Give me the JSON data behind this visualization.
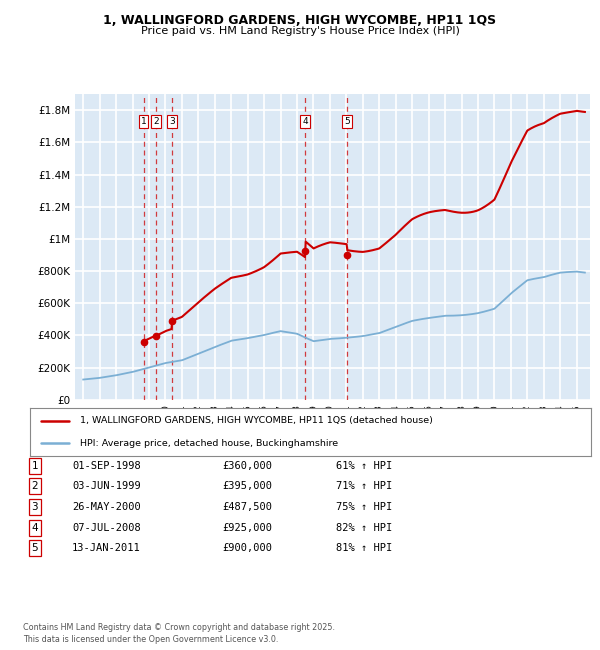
{
  "title_line1": "1, WALLINGFORD GARDENS, HIGH WYCOMBE, HP11 1QS",
  "title_line2": "Price paid vs. HM Land Registry's House Price Index (HPI)",
  "bg_color": "#dce9f5",
  "grid_color": "#ffffff",
  "red_color": "#cc0000",
  "blue_color": "#7bafd4",
  "purchase_dates_float": [
    1998.667,
    1999.417,
    2000.4,
    2008.5,
    2011.04
  ],
  "purchase_prices": [
    360000,
    395000,
    487500,
    925000,
    900000
  ],
  "hpi_years": [
    1995,
    1996,
    1997,
    1998,
    1999,
    2000,
    2001,
    2002,
    2003,
    2004,
    2005,
    2006,
    2007,
    2008,
    2009,
    2010,
    2011,
    2012,
    2013,
    2014,
    2015,
    2016,
    2017,
    2018,
    2019,
    2020,
    2021,
    2022,
    2023,
    2024,
    2025
  ],
  "hpi_vals": [
    128000,
    138000,
    153000,
    172000,
    198000,
    225000,
    242000,
    282000,
    322000,
    358000,
    372000,
    392000,
    422000,
    415000,
    376000,
    395000,
    400000,
    403000,
    413000,
    445000,
    484000,
    510000,
    535000,
    545000,
    556000,
    572000,
    648000,
    710000,
    718000,
    745000,
    760000
  ],
  "table_rows": [
    {
      "num": "1",
      "date": "01-SEP-1998",
      "price": "£360,000",
      "hpi": "61% ↑ HPI"
    },
    {
      "num": "2",
      "date": "03-JUN-1999",
      "price": "£395,000",
      "hpi": "71% ↑ HPI"
    },
    {
      "num": "3",
      "date": "26-MAY-2000",
      "price": "£487,500",
      "hpi": "75% ↑ HPI"
    },
    {
      "num": "4",
      "date": "07-JUL-2008",
      "price": "£925,000",
      "hpi": "82% ↑ HPI"
    },
    {
      "num": "5",
      "date": "13-JAN-2011",
      "price": "£900,000",
      "hpi": "81% ↑ HPI"
    }
  ],
  "legend_line1": "1, WALLINGFORD GARDENS, HIGH WYCOMBE, HP11 1QS (detached house)",
  "legend_line2": "HPI: Average price, detached house, Buckinghamshire",
  "footer": "Contains HM Land Registry data © Crown copyright and database right 2025.\nThis data is licensed under the Open Government Licence v3.0.",
  "ylim": [
    0,
    1900000
  ],
  "yticks": [
    0,
    200000,
    400000,
    600000,
    800000,
    1000000,
    1200000,
    1400000,
    1600000,
    1800000
  ],
  "ytick_labels": [
    "£0",
    "£200K",
    "£400K",
    "£600K",
    "£800K",
    "£1M",
    "£1.2M",
    "£1.4M",
    "£1.6M",
    "£1.8M"
  ],
  "xmin": 1994.5,
  "xmax": 2025.8
}
